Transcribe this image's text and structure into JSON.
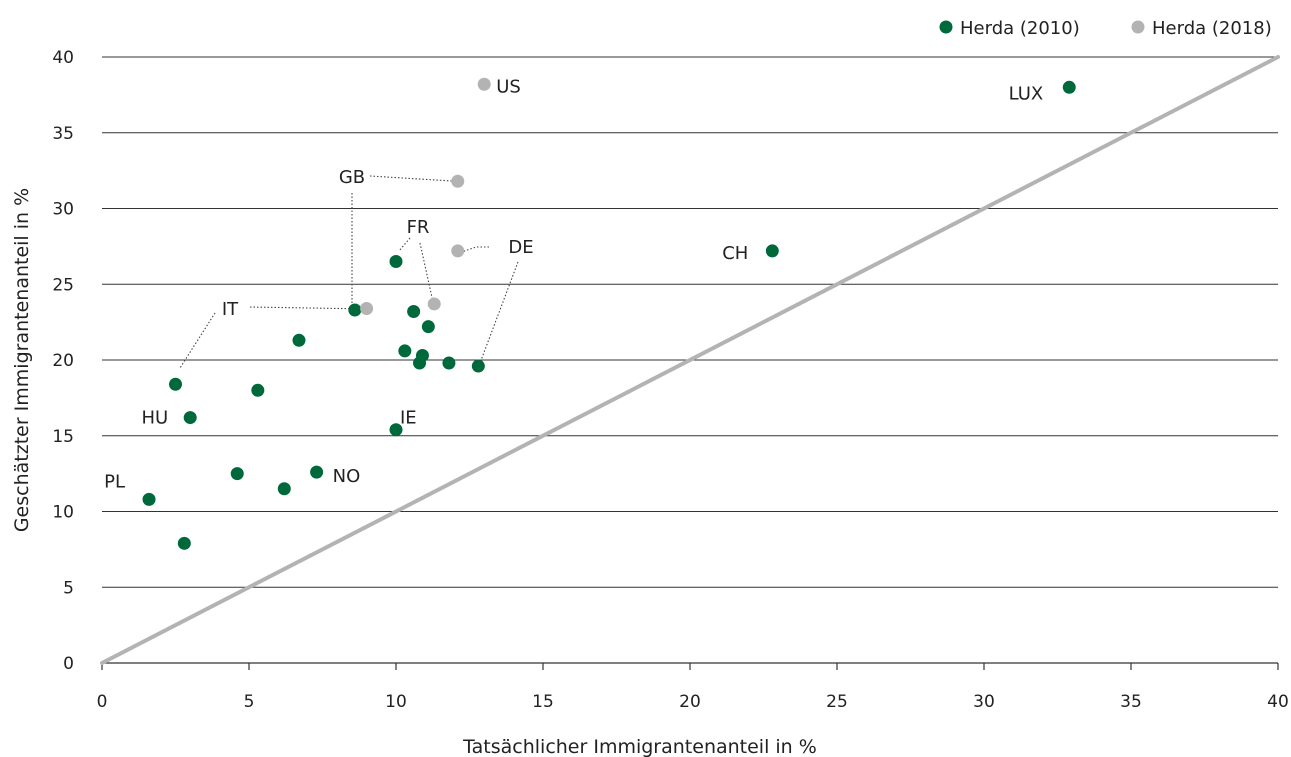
{
  "chart_data": {
    "type": "scatter",
    "xlabel": "Tatsächlicher Immigrantenanteil in %",
    "ylabel": "Geschätzter Immigrantenanteil in %",
    "xlim": [
      0,
      40
    ],
    "ylim": [
      0,
      40
    ],
    "x_ticks": [
      "0",
      "5",
      "10",
      "15",
      "20",
      "25",
      "30",
      "35",
      "40"
    ],
    "y_ticks": [
      "0",
      "5",
      "10",
      "15",
      "20",
      "25",
      "30",
      "35",
      "40"
    ],
    "grid": "horizontal",
    "legend_position": "top-right",
    "reference_line": {
      "type": "diagonal",
      "from": [
        0,
        0
      ],
      "to": [
        40,
        40
      ],
      "color": "#b3b3b3"
    },
    "series": [
      {
        "name": "Herda (2010)",
        "color": "#00693c",
        "points": [
          {
            "x": 1.6,
            "y": 10.8,
            "label": "PL"
          },
          {
            "x": 2.8,
            "y": 7.9
          },
          {
            "x": 2.5,
            "y": 18.4
          },
          {
            "x": 3.0,
            "y": 16.2,
            "label": "HU"
          },
          {
            "x": 4.6,
            "y": 12.5
          },
          {
            "x": 5.3,
            "y": 18.0
          },
          {
            "x": 6.2,
            "y": 11.5
          },
          {
            "x": 6.7,
            "y": 21.3
          },
          {
            "x": 7.3,
            "y": 12.6,
            "label": "NO"
          },
          {
            "x": 8.6,
            "y": 23.3
          },
          {
            "x": 10.0,
            "y": 26.5
          },
          {
            "x": 10.0,
            "y": 15.4,
            "label": "IE"
          },
          {
            "x": 10.3,
            "y": 20.6
          },
          {
            "x": 10.6,
            "y": 23.2
          },
          {
            "x": 10.8,
            "y": 19.8
          },
          {
            "x": 10.9,
            "y": 20.3
          },
          {
            "x": 11.1,
            "y": 22.2
          },
          {
            "x": 11.8,
            "y": 19.8
          },
          {
            "x": 12.8,
            "y": 19.6
          },
          {
            "x": 22.8,
            "y": 27.2,
            "label": "CH"
          },
          {
            "x": 32.9,
            "y": 38.0,
            "label": "LUX"
          }
        ]
      },
      {
        "name": "Herda (2018)",
        "color": "#b3b3b3",
        "points": [
          {
            "x": 9.0,
            "y": 23.4
          },
          {
            "x": 11.3,
            "y": 23.7
          },
          {
            "x": 12.1,
            "y": 27.2
          },
          {
            "x": 12.1,
            "y": 31.8
          },
          {
            "x": 13.0,
            "y": 38.2,
            "label": "US"
          }
        ]
      }
    ],
    "callouts": [
      {
        "label": "GB"
      },
      {
        "label": "FR"
      },
      {
        "label": "DE"
      },
      {
        "label": "IT"
      }
    ]
  }
}
